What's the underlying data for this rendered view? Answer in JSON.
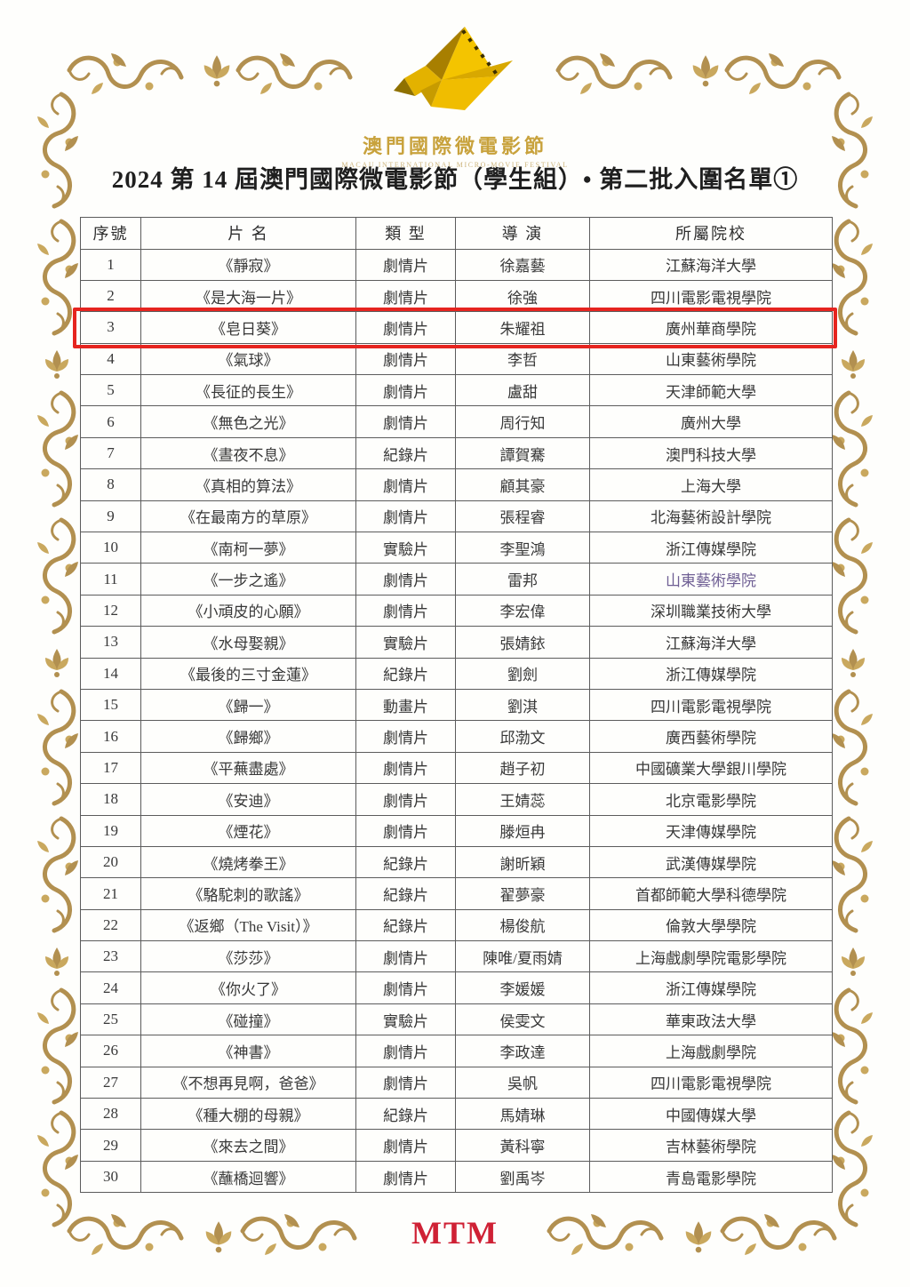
{
  "logo": {
    "icon": "origami-bird-filmstrip-logo",
    "chinese": "澳門國際微電影節",
    "english": "MACAU INTERNATIONAL MICRO-MOVIE FESTIVAL"
  },
  "title": "2024 第 14 屆澳門國際微電影節（學生組）• 第二批入圍名單①",
  "table": {
    "headers": [
      "序號",
      "片 名",
      "類 型",
      "導 演",
      "所屬院校"
    ],
    "rows": [
      {
        "no": "1",
        "title": "《靜寂》",
        "type": "劇情片",
        "director": "徐嘉藝",
        "school": "江蘇海洋大學",
        "highlighted": false
      },
      {
        "no": "2",
        "title": "《是大海一片》",
        "type": "劇情片",
        "director": "徐強",
        "school": "四川電影電視學院",
        "highlighted": false
      },
      {
        "no": "3",
        "title": "《皂日葵》",
        "type": "劇情片",
        "director": "朱耀祖",
        "school": "廣州華商學院",
        "highlighted": true
      },
      {
        "no": "4",
        "title": "《氣球》",
        "type": "劇情片",
        "director": "李哲",
        "school": "山東藝術學院",
        "highlighted": false
      },
      {
        "no": "5",
        "title": "《長征的長生》",
        "type": "劇情片",
        "director": "盧甜",
        "school": "天津師範大學",
        "highlighted": false
      },
      {
        "no": "6",
        "title": "《無色之光》",
        "type": "劇情片",
        "director": "周行知",
        "school": "廣州大學",
        "highlighted": false
      },
      {
        "no": "7",
        "title": "《晝夜不息》",
        "type": "紀錄片",
        "director": "譚賀騫",
        "school": "澳門科技大學",
        "highlighted": false
      },
      {
        "no": "8",
        "title": "《真相的算法》",
        "type": "劇情片",
        "director": "顧其豪",
        "school": "上海大學",
        "highlighted": false
      },
      {
        "no": "9",
        "title": "《在最南方的草原》",
        "type": "劇情片",
        "director": "張程睿",
        "school": "北海藝術設計學院",
        "highlighted": false
      },
      {
        "no": "10",
        "title": "《南柯一夢》",
        "type": "實驗片",
        "director": "李聖鴻",
        "school": "浙江傳媒學院",
        "highlighted": false
      },
      {
        "no": "11",
        "title": "《一步之遙》",
        "type": "劇情片",
        "director": "雷邦",
        "school": "山東藝術學院",
        "highlighted": false,
        "school_color": "#6f5f94"
      },
      {
        "no": "12",
        "title": "《小頑皮的心願》",
        "type": "劇情片",
        "director": "李宏偉",
        "school": "深圳職業技術大學",
        "highlighted": false
      },
      {
        "no": "13",
        "title": "《水母娶親》",
        "type": "實驗片",
        "director": "張婧銥",
        "school": "江蘇海洋大學",
        "highlighted": false
      },
      {
        "no": "14",
        "title": "《最後的三寸金蓮》",
        "type": "紀錄片",
        "director": "劉劍",
        "school": "浙江傳媒學院",
        "highlighted": false
      },
      {
        "no": "15",
        "title": "《歸一》",
        "type": "動畫片",
        "director": "劉淇",
        "school": "四川電影電視學院",
        "highlighted": false
      },
      {
        "no": "16",
        "title": "《歸鄉》",
        "type": "劇情片",
        "director": "邱渤文",
        "school": "廣西藝術學院",
        "highlighted": false
      },
      {
        "no": "17",
        "title": "《平蕪盡處》",
        "type": "劇情片",
        "director": "趙子初",
        "school": "中國礦業大學銀川學院",
        "highlighted": false
      },
      {
        "no": "18",
        "title": "《安迪》",
        "type": "劇情片",
        "director": "王婧蕊",
        "school": "北京電影學院",
        "highlighted": false
      },
      {
        "no": "19",
        "title": "《煙花》",
        "type": "劇情片",
        "director": "滕烜冉",
        "school": "天津傳媒學院",
        "highlighted": false
      },
      {
        "no": "20",
        "title": "《燒烤拳王》",
        "type": "紀錄片",
        "director": "謝昕穎",
        "school": "武漢傳媒學院",
        "highlighted": false
      },
      {
        "no": "21",
        "title": "《駱駝刺的歌謠》",
        "type": "紀錄片",
        "director": "翟夢豪",
        "school": "首都師範大學科德學院",
        "highlighted": false
      },
      {
        "no": "22",
        "title": "《返鄉（The Visit）》",
        "type": "紀錄片",
        "director": "楊俊航",
        "school": "倫敦大學學院",
        "highlighted": false
      },
      {
        "no": "23",
        "title": "《莎莎》",
        "type": "劇情片",
        "director": "陳唯/夏雨婧",
        "school": "上海戲劇學院電影學院",
        "highlighted": false
      },
      {
        "no": "24",
        "title": "《你火了》",
        "type": "劇情片",
        "director": "李媛媛",
        "school": "浙江傳媒學院",
        "highlighted": false
      },
      {
        "no": "25",
        "title": "《碰撞》",
        "type": "實驗片",
        "director": "侯雯文",
        "school": "華東政法大學",
        "highlighted": false
      },
      {
        "no": "26",
        "title": "《神書》",
        "type": "劇情片",
        "director": "李政達",
        "school": "上海戲劇學院",
        "highlighted": false
      },
      {
        "no": "27",
        "title": "《不想再見啊，爸爸》",
        "type": "劇情片",
        "director": "吳帆",
        "school": "四川電影電視學院",
        "highlighted": false
      },
      {
        "no": "28",
        "title": "《種大棚的母親》",
        "type": "紀錄片",
        "director": "馬婧琳",
        "school": "中國傳媒大學",
        "highlighted": false
      },
      {
        "no": "29",
        "title": "《來去之間》",
        "type": "劇情片",
        "director": "黃科寧",
        "school": "吉林藝術學院",
        "highlighted": false
      },
      {
        "no": "30",
        "title": "《蘸橋迴響》",
        "type": "劇情片",
        "director": "劉禹岑",
        "school": "青島電影學院",
        "highlighted": false
      }
    ]
  },
  "highlight": {
    "row_no": "3",
    "color": "#e6241f"
  },
  "footer": {
    "watermark": "MTM"
  },
  "colors": {
    "ornament_gold": "#b29050",
    "ornament_gold_light": "#c9a85e",
    "logo_gold": "#f2c100",
    "highlight_red": "#e6241f",
    "watermark_red": "#cf2135",
    "text": "#383838",
    "table_border": "#5c5c5c"
  }
}
